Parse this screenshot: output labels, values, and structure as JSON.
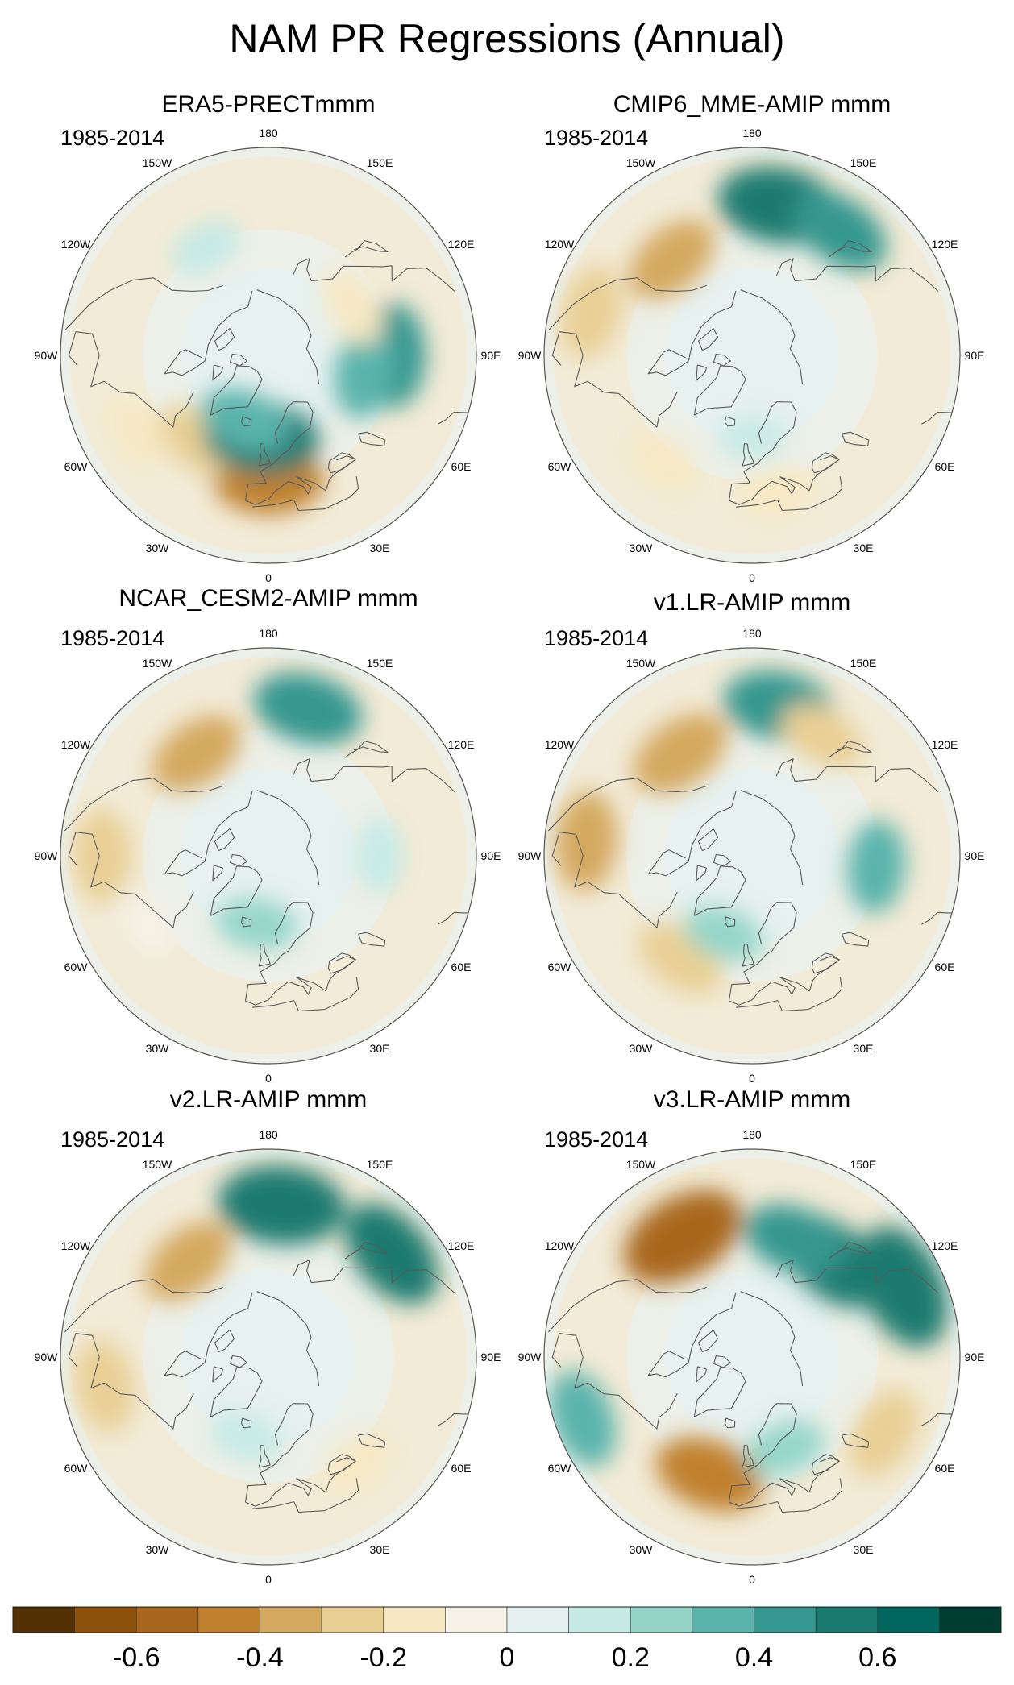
{
  "figure": {
    "title": "NAM PR Regressions (Annual)",
    "period": "1985-2014"
  },
  "longitude_labels": [
    "180",
    "150E",
    "120E",
    "90E",
    "60E",
    "30E",
    "0",
    "30W",
    "60W",
    "90W",
    "120W",
    "150W"
  ],
  "panels": [
    {
      "title": "ERA5-PRECTmmm",
      "anomalies": [
        {
          "lat": 45,
          "lon": 90,
          "value": 0.4
        },
        {
          "lat": 55,
          "lon": 80,
          "value": 0.3
        },
        {
          "lat": 45,
          "lon": 0,
          "value": -0.45
        },
        {
          "lat": 50,
          "lon": -40,
          "value": -0.25
        },
        {
          "lat": 35,
          "lon": -60,
          "value": -0.15
        },
        {
          "lat": 60,
          "lon": -5,
          "value": 0.5
        },
        {
          "lat": 65,
          "lon": -20,
          "value": 0.3
        },
        {
          "lat": 55,
          "lon": 120,
          "value": -0.2
        },
        {
          "lat": 45,
          "lon": -150,
          "value": 0.15
        }
      ]
    },
    {
      "title": "CMIP6_MME-AMIP  mmm",
      "anomalies": [
        {
          "lat": 35,
          "lon": 170,
          "value": 0.55
        },
        {
          "lat": 35,
          "lon": 145,
          "value": 0.4
        },
        {
          "lat": 45,
          "lon": -140,
          "value": -0.35
        },
        {
          "lat": 30,
          "lon": -105,
          "value": -0.3
        },
        {
          "lat": 60,
          "lon": 0,
          "value": 0.1
        },
        {
          "lat": 40,
          "lon": 10,
          "value": -0.15
        },
        {
          "lat": 40,
          "lon": -40,
          "value": -0.15
        }
      ]
    },
    {
      "title": "NCAR_CESM2-AMIP  mmm",
      "anomalies": [
        {
          "lat": 35,
          "lon": 165,
          "value": 0.45
        },
        {
          "lat": 45,
          "lon": -145,
          "value": -0.35
        },
        {
          "lat": 30,
          "lon": -90,
          "value": -0.3
        },
        {
          "lat": 40,
          "lon": -60,
          "value": -0.1
        },
        {
          "lat": 65,
          "lon": -10,
          "value": 0.2
        },
        {
          "lat": 50,
          "lon": 90,
          "value": 0.15
        }
      ]
    },
    {
      "title": "v1.LR-AMIP  mmm",
      "anomalies": [
        {
          "lat": 35,
          "lon": 170,
          "value": 0.45
        },
        {
          "lat": 45,
          "lon": -145,
          "value": -0.4
        },
        {
          "lat": 30,
          "lon": -95,
          "value": -0.35
        },
        {
          "lat": 45,
          "lon": -35,
          "value": -0.3
        },
        {
          "lat": 40,
          "lon": 150,
          "value": -0.25
        },
        {
          "lat": 60,
          "lon": -20,
          "value": 0.2
        },
        {
          "lat": 45,
          "lon": 85,
          "value": 0.3
        }
      ]
    },
    {
      "title": "v2.LR-AMIP  mmm",
      "anomalies": [
        {
          "lat": 35,
          "lon": 175,
          "value": 0.6
        },
        {
          "lat": 32,
          "lon": 130,
          "value": 0.5
        },
        {
          "lat": 45,
          "lon": -140,
          "value": -0.35
        },
        {
          "lat": 30,
          "lon": -80,
          "value": -0.3
        },
        {
          "lat": 40,
          "lon": 40,
          "value": -0.15
        },
        {
          "lat": 60,
          "lon": -15,
          "value": 0.15
        }
      ]
    },
    {
      "title": "v3.LR-AMIP  mmm",
      "anomalies": [
        {
          "lat": 40,
          "lon": -150,
          "value": -0.6
        },
        {
          "lat": 45,
          "lon": 140,
          "value": 0.5
        },
        {
          "lat": 30,
          "lon": 115,
          "value": 0.6
        },
        {
          "lat": 45,
          "lon": 160,
          "value": 0.4
        },
        {
          "lat": 45,
          "lon": -20,
          "value": -0.45
        },
        {
          "lat": 25,
          "lon": -70,
          "value": 0.35
        },
        {
          "lat": 35,
          "lon": 60,
          "value": -0.3
        },
        {
          "lat": 55,
          "lon": 20,
          "value": 0.2
        }
      ]
    }
  ],
  "colorbar": {
    "colors": [
      "#543005",
      "#8c510a",
      "#a8671f",
      "#bf812d",
      "#d4a85f",
      "#e8cf94",
      "#f6e8c3",
      "#f5f1e6",
      "#e4f1f0",
      "#c7eae5",
      "#94d5c8",
      "#5ab4ac",
      "#35978f",
      "#1b7a70",
      "#01665e",
      "#003c30"
    ],
    "tick_labels": [
      "-0.6",
      "-0.4",
      "-0.2",
      "0",
      "0.2",
      "0.4",
      "0.6"
    ],
    "tick_values": [
      -0.6,
      -0.4,
      -0.2,
      0,
      0.2,
      0.4,
      0.6
    ],
    "min": -0.8,
    "max": 0.8
  }
}
